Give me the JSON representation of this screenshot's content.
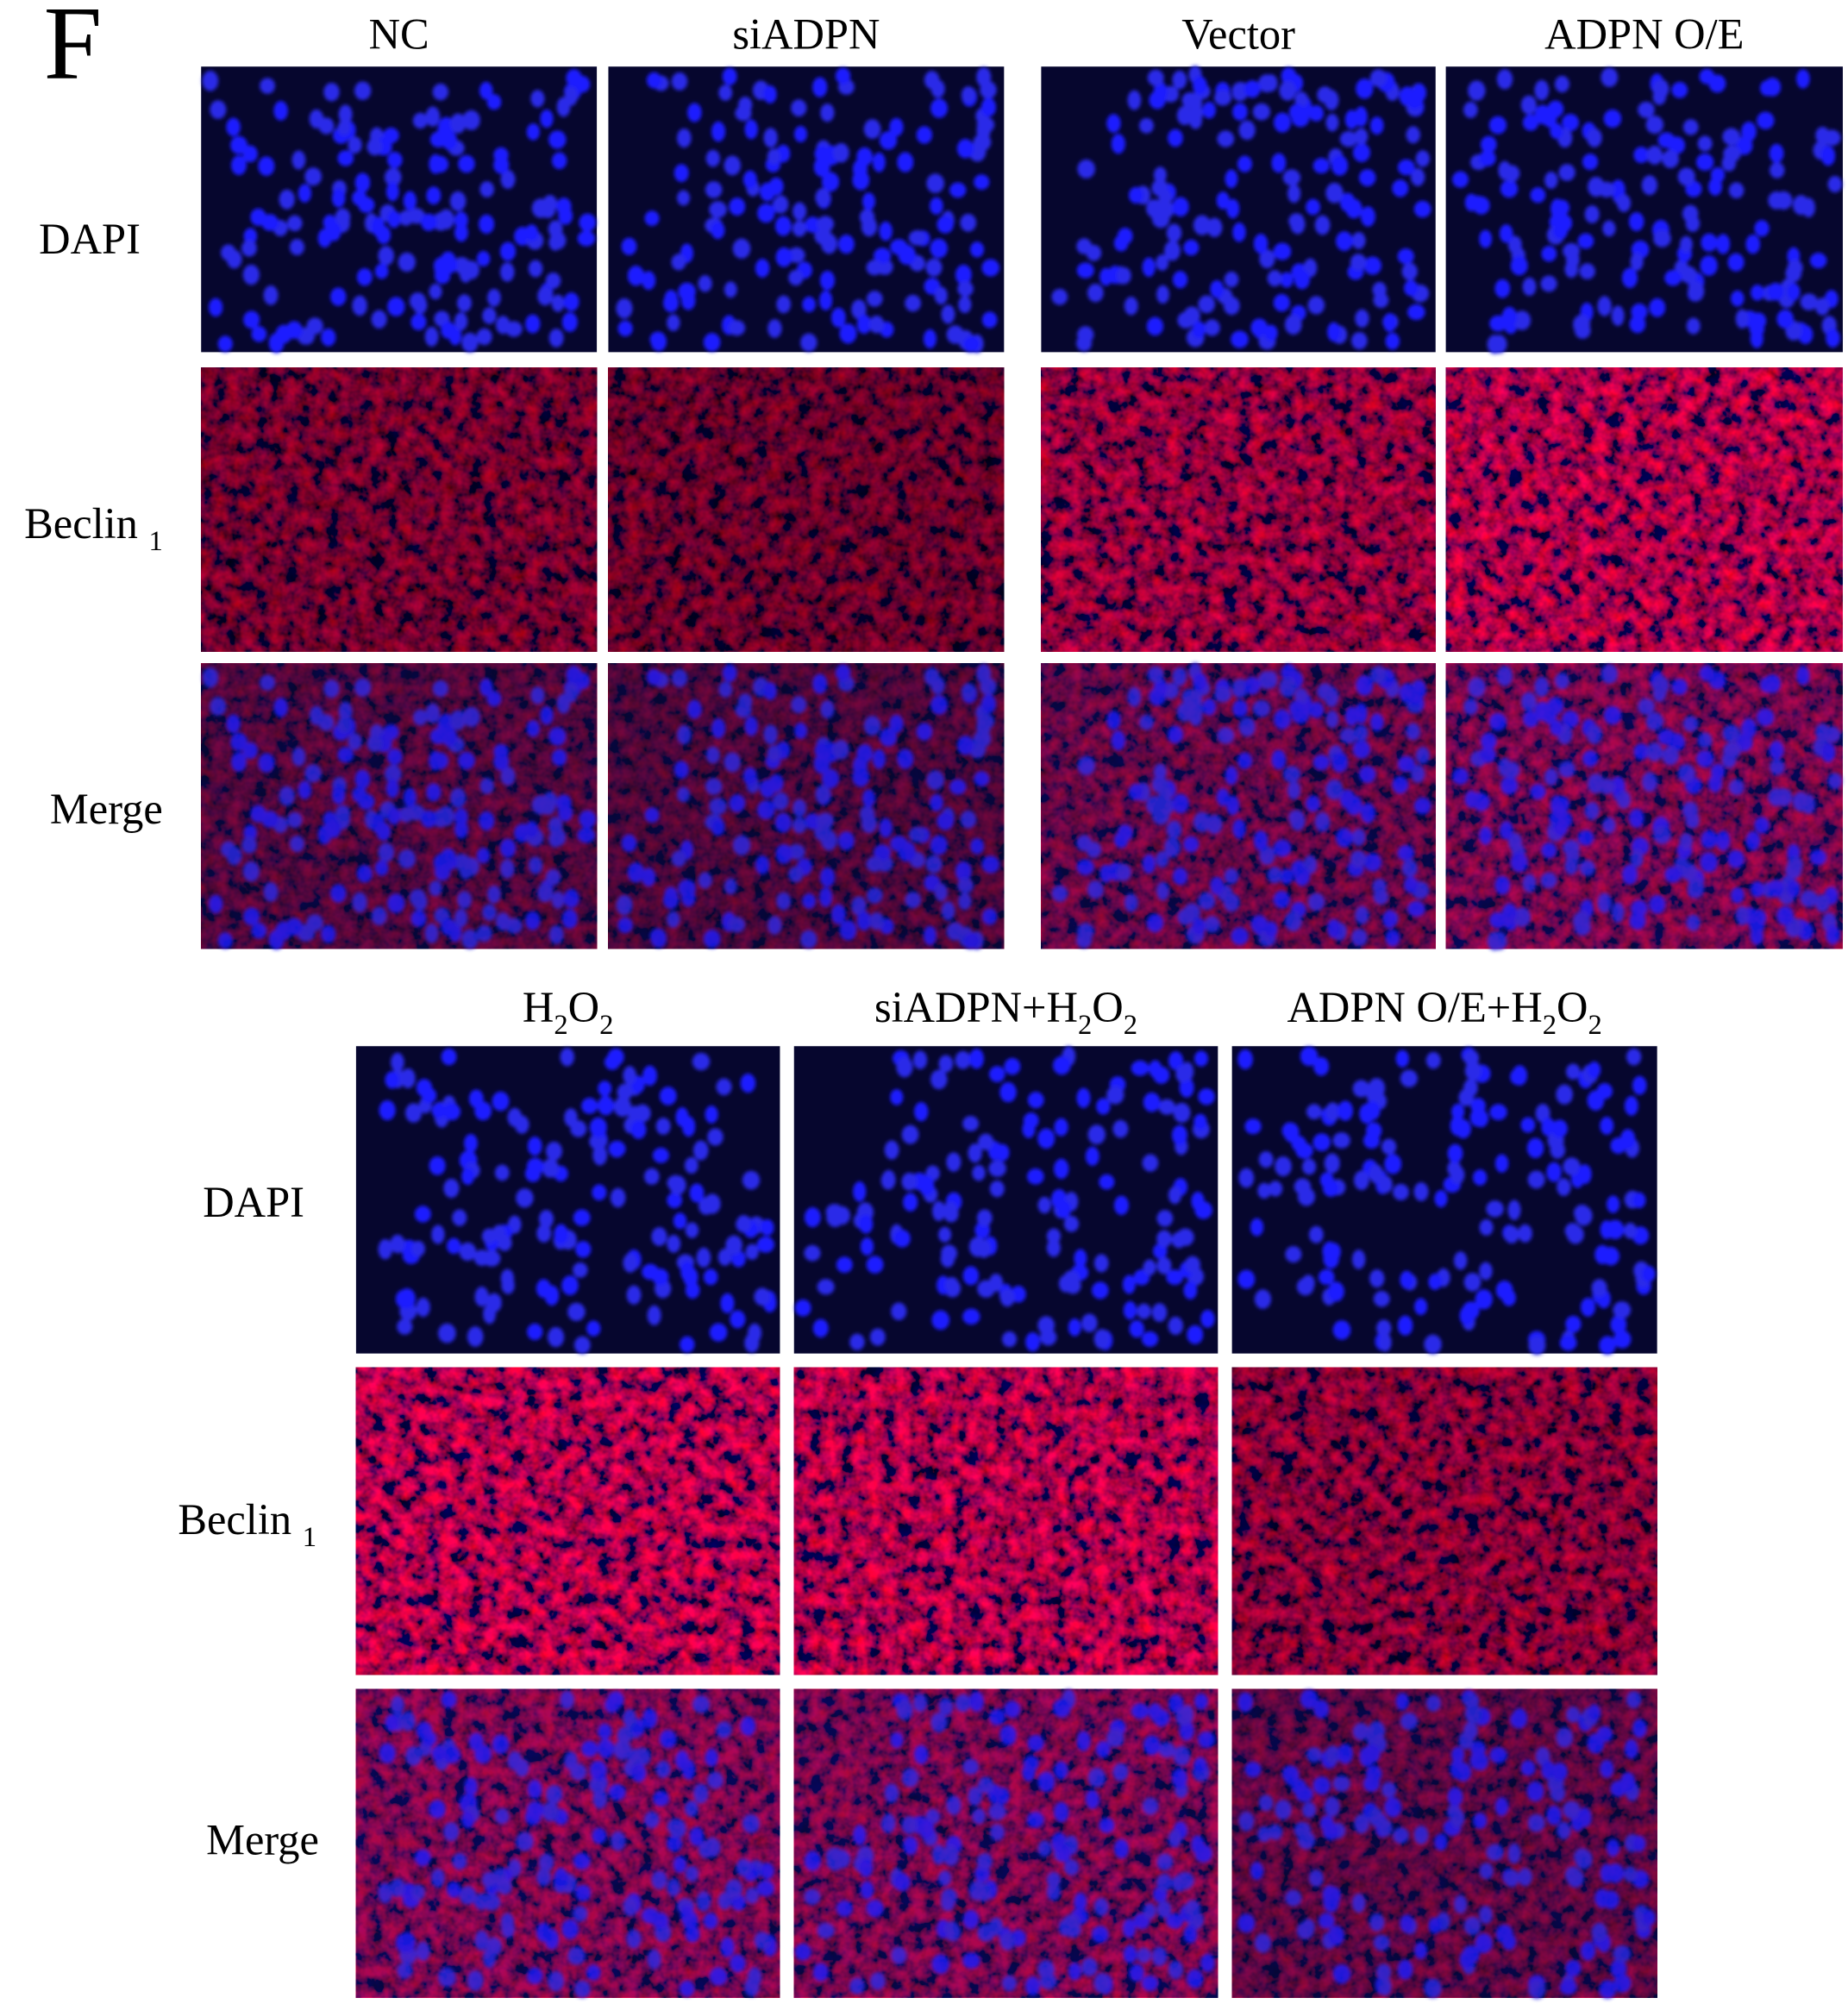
{
  "panel_label": "F",
  "top": {
    "columns": [
      "NC",
      "siADPN",
      "Vector",
      "ADPN O/E"
    ],
    "rows": [
      "DAPI",
      "Beclin 1",
      "Merge"
    ]
  },
  "bottom": {
    "columns": [
      "H2O2",
      "siADPN+H2O2",
      "ADPN O/E+H2O2"
    ],
    "rows": [
      "DAPI",
      "Beclin 1",
      "Merge"
    ]
  }
}
